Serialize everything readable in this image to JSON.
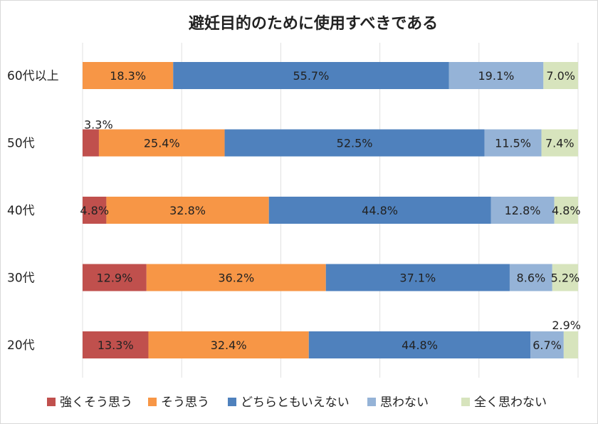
{
  "chart_data": {
    "type": "bar",
    "orientation": "horizontal",
    "stacked": true,
    "normalized": true,
    "title": "避妊目的のために使用すべきである",
    "categories": [
      "60代以上",
      "50代",
      "40代",
      "30代",
      "20代"
    ],
    "series": [
      {
        "name": "強くそう思う",
        "color": "#c0504d",
        "values": [
          0,
          3.3,
          4.8,
          12.9,
          13.3
        ],
        "labels": [
          "",
          "3.3%",
          "4.8%",
          "12.9%",
          "13.3%"
        ]
      },
      {
        "name": "そう思う",
        "color": "#f79646",
        "values": [
          18.3,
          25.4,
          32.8,
          36.2,
          32.4
        ],
        "labels": [
          "18.3%",
          "25.4%",
          "32.8%",
          "36.2%",
          "32.4%"
        ]
      },
      {
        "name": "どちらともいえない",
        "color": "#4f81bd",
        "values": [
          55.7,
          52.5,
          44.8,
          37.1,
          44.8
        ],
        "labels": [
          "55.7%",
          "52.5%",
          "44.8%",
          "37.1%",
          "44.8%"
        ]
      },
      {
        "name": "思わない",
        "color": "#95b3d7",
        "values": [
          19.1,
          11.5,
          12.8,
          8.6,
          6.7
        ],
        "labels": [
          "19.1%",
          "11.5%",
          "12.8%",
          "8.6%",
          "6.7%"
        ]
      },
      {
        "name": "全く思わない",
        "color": "#d7e4bd",
        "values": [
          7.0,
          7.4,
          4.8,
          5.2,
          2.9
        ],
        "labels": [
          "7.0%",
          "7.4%",
          "4.8%",
          "5.2%",
          "2.9%"
        ]
      }
    ],
    "grid": true,
    "legend": "bottom"
  }
}
